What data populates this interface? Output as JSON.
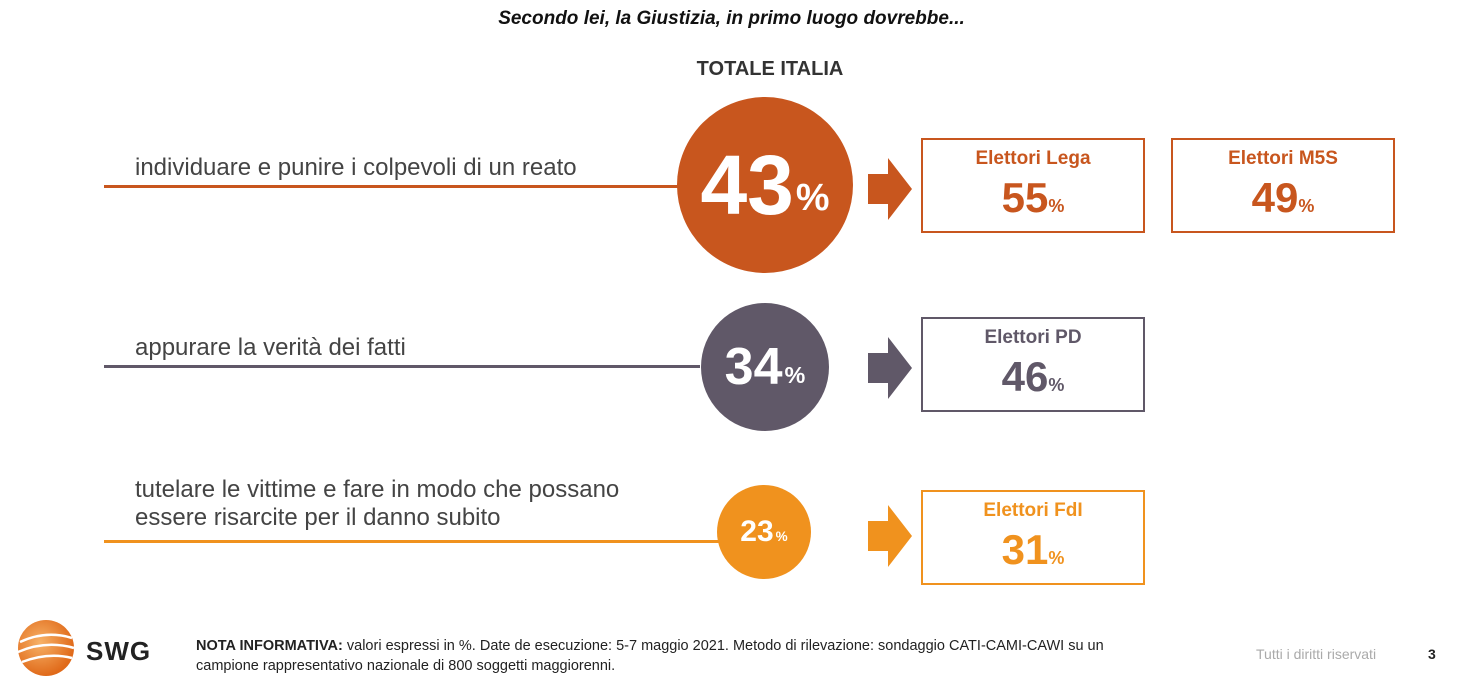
{
  "question": "Secondo lei, la Giustizia, in primo luogo dovrebbe...",
  "total_label": "TOTALE ITALIA",
  "colors": {
    "orange_dark": "#c8561e",
    "purple": "#605868",
    "orange_light": "#f0921e"
  },
  "chart_data": {
    "type": "bubble-infographic",
    "title": "Secondo lei, la Giustizia, in primo luogo dovrebbe...",
    "series_label": "TOTALE ITALIA",
    "unit": "%",
    "rows": [
      {
        "label_lines": [
          "individuare e punire i colpevoli di un reato"
        ],
        "value": 43,
        "color": "#c8561e",
        "breakdown": [
          {
            "group": "Elettori Lega",
            "value": 55
          },
          {
            "group": "Elettori M5S",
            "value": 49
          }
        ]
      },
      {
        "label_lines": [
          "appurare la verità dei fatti"
        ],
        "value": 34,
        "color": "#605868",
        "breakdown": [
          {
            "group": "Elettori PD",
            "value": 46
          }
        ]
      },
      {
        "label_lines": [
          "tutelare le vittime e fare in modo che possano",
          "essere risarcite per il danno subito"
        ],
        "value": 23,
        "color": "#f0921e",
        "breakdown": [
          {
            "group": "Elettori FdI",
            "value": 31
          }
        ]
      }
    ]
  },
  "footer": {
    "note_bold": "NOTA INFORMATIVA:",
    "note_text": " valori espressi in %. Date de esecuzione: 5-7 maggio 2021. Metodo di rilevazione: sondaggio CATI-CAMI-CAWI su un campione rappresentativo nazionale di 800 soggetti maggiorenni.",
    "rights": "Tutti i diritti riservati",
    "page_number": "3",
    "logo_text": "SWG"
  }
}
